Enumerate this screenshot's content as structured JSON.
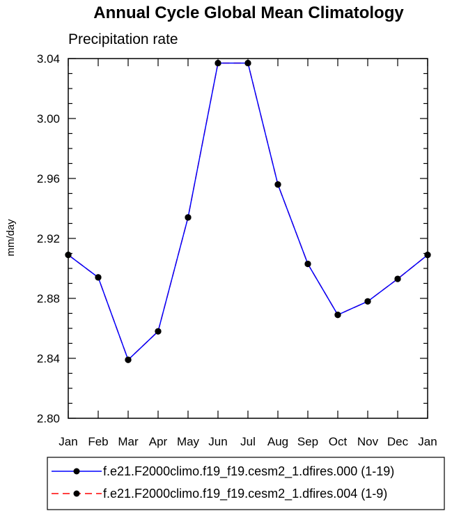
{
  "chart_data": {
    "type": "line",
    "title": "Annual Cycle Global Mean Climatology",
    "subtitle": "Precipitation rate",
    "ylabel": "mm/day",
    "xlabel": "",
    "categories": [
      "Jan",
      "Feb",
      "Mar",
      "Apr",
      "May",
      "Jun",
      "Jul",
      "Aug",
      "Sep",
      "Oct",
      "Nov",
      "Dec",
      "Jan"
    ],
    "ylim": [
      2.8,
      3.04
    ],
    "yticks": [
      "2.80",
      "2.84",
      "2.88",
      "2.92",
      "2.96",
      "3.00",
      "3.04"
    ],
    "grid": false,
    "legend_position": "bottom",
    "series": [
      {
        "name": "f.e21.F2000climo.f19_f19.cesm2_1.dfires.000 (1-19)",
        "color": "#0000ff",
        "line_style": "solid",
        "marker": "filled-circle",
        "values": [
          2.909,
          2.894,
          2.839,
          2.858,
          2.934,
          3.037,
          3.037,
          2.956,
          2.903,
          2.869,
          2.878,
          2.893,
          2.909
        ]
      },
      {
        "name": "f.e21.F2000climo.f19_f19.cesm2_1.dfires.004 (1-9)",
        "color": "#ff0000",
        "line_style": "dashed",
        "marker": "filled-circle",
        "values": [
          2.909,
          2.894,
          2.839,
          2.858,
          2.934,
          3.037,
          3.037,
          2.956,
          2.903,
          2.869,
          2.878,
          2.893,
          2.909
        ]
      }
    ]
  }
}
